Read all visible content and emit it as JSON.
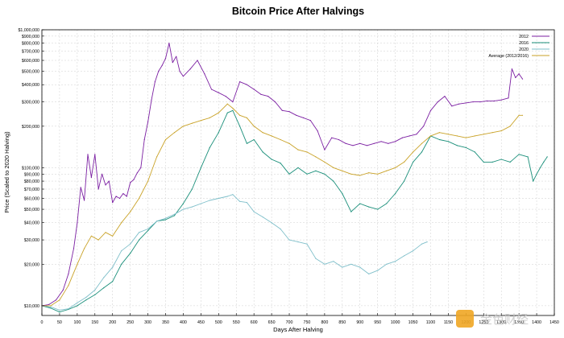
{
  "chart_data": {
    "type": "line",
    "title": "Bitcoin Price After Halvings",
    "xlabel": "Days After Halving",
    "ylabel": "Price (Scaled to 2020 Halving)",
    "y_scale": "log",
    "xlim": [
      0,
      1450
    ],
    "ylim": [
      8500,
      1000000
    ],
    "grid": true,
    "legend_position": "top-right",
    "x_ticks": [
      0,
      50,
      100,
      150,
      200,
      250,
      300,
      350,
      400,
      450,
      500,
      550,
      600,
      650,
      700,
      750,
      800,
      850,
      900,
      950,
      1000,
      1050,
      1100,
      1150,
      1200,
      1250,
      1300,
      1350,
      1400,
      1450
    ],
    "x_tick_labels": [
      "0",
      "50",
      "100",
      "150",
      "200",
      "250",
      "300",
      "350",
      "400",
      "450",
      "500",
      "550",
      "600",
      "650",
      "700",
      "750",
      "800",
      "850",
      "900",
      "950",
      "1000",
      "1050",
      "1100",
      "1150",
      "1200",
      "1250",
      "1300",
      "1350",
      "1400",
      "1450"
    ],
    "y_ticks": [
      10000,
      20000,
      30000,
      40000,
      50000,
      60000,
      70000,
      80000,
      90000,
      100000,
      200000,
      300000,
      400000,
      500000,
      600000,
      700000,
      800000,
      900000,
      1000000
    ],
    "y_tick_labels": [
      "$10,000",
      "$20,000",
      "$30,000",
      "$40,000",
      "$50,000",
      "$60,000",
      "$70,000",
      "$80,000",
      "$90,000",
      "$100,000",
      "$200,000",
      "$300,000",
      "$400,000",
      "$500,000",
      "$600,000",
      "$700,000",
      "$800,000",
      "$900,000",
      "$1,000,000"
    ],
    "series": [
      {
        "name": "2012",
        "color": "#7b1fa2",
        "x": [
          0,
          20,
          40,
          60,
          75,
          90,
          100,
          110,
          120,
          130,
          140,
          150,
          160,
          170,
          180,
          190,
          200,
          210,
          220,
          230,
          240,
          250,
          260,
          270,
          280,
          290,
          300,
          310,
          320,
          330,
          340,
          350,
          360,
          370,
          380,
          390,
          400,
          420,
          440,
          460,
          480,
          500,
          520,
          540,
          560,
          580,
          600,
          620,
          640,
          660,
          680,
          700,
          720,
          740,
          760,
          780,
          800,
          820,
          840,
          860,
          880,
          900,
          920,
          940,
          960,
          980,
          1000,
          1020,
          1040,
          1060,
          1080,
          1100,
          1120,
          1140,
          1160,
          1180,
          1200,
          1220,
          1240,
          1260,
          1280,
          1300,
          1320,
          1330,
          1340,
          1350,
          1360
        ],
        "y": [
          10000,
          10200,
          11000,
          13000,
          17000,
          26000,
          40000,
          72000,
          58000,
          125000,
          85000,
          125000,
          70000,
          90000,
          75000,
          80000,
          56000,
          62000,
          60000,
          65000,
          62000,
          78000,
          82000,
          92000,
          100000,
          160000,
          215000,
          310000,
          420000,
          500000,
          550000,
          620000,
          800000,
          580000,
          640000,
          500000,
          460000,
          520000,
          600000,
          480000,
          370000,
          350000,
          330000,
          300000,
          420000,
          400000,
          370000,
          340000,
          330000,
          300000,
          260000,
          255000,
          240000,
          230000,
          220000,
          185000,
          135000,
          165000,
          160000,
          150000,
          145000,
          150000,
          145000,
          150000,
          155000,
          150000,
          155000,
          165000,
          170000,
          175000,
          200000,
          260000,
          300000,
          330000,
          280000,
          290000,
          295000,
          300000,
          300000,
          305000,
          305000,
          310000,
          320000,
          520000,
          450000,
          480000,
          440000
        ]
      },
      {
        "name": "2016",
        "color": "#1a8f7a",
        "x": [
          0,
          25,
          50,
          75,
          100,
          125,
          150,
          175,
          200,
          225,
          250,
          275,
          300,
          325,
          350,
          375,
          400,
          425,
          450,
          475,
          500,
          525,
          540,
          560,
          580,
          600,
          625,
          650,
          675,
          700,
          725,
          750,
          775,
          800,
          825,
          850,
          875,
          900,
          925,
          950,
          975,
          1000,
          1025,
          1050,
          1075,
          1100,
          1125,
          1150,
          1175,
          1200,
          1225,
          1250,
          1275,
          1300,
          1325,
          1350,
          1375,
          1390,
          1400,
          1410,
          1420,
          1430
        ],
        "y": [
          10000,
          9600,
          9000,
          9400,
          10000,
          11000,
          12000,
          13500,
          15000,
          20000,
          24000,
          30000,
          35000,
          41000,
          42000,
          45000,
          55000,
          70000,
          100000,
          140000,
          180000,
          250000,
          260000,
          200000,
          150000,
          160000,
          130000,
          115000,
          108000,
          90000,
          100000,
          90000,
          95000,
          90000,
          80000,
          65000,
          48000,
          55000,
          52000,
          50000,
          55000,
          65000,
          80000,
          110000,
          130000,
          170000,
          160000,
          155000,
          145000,
          140000,
          130000,
          110000,
          110000,
          115000,
          110000,
          125000,
          120000,
          80000,
          90000,
          100000,
          110000,
          120000
        ]
      },
      {
        "name": "2020",
        "color": "#7fbfca",
        "x": [
          0,
          25,
          50,
          75,
          100,
          125,
          150,
          175,
          200,
          225,
          250,
          275,
          300,
          325,
          350,
          375,
          400,
          425,
          450,
          475,
          500,
          525,
          540,
          560,
          580,
          600,
          625,
          650,
          675,
          700,
          725,
          750,
          775,
          800,
          825,
          850,
          875,
          900,
          925,
          950,
          975,
          1000,
          1025,
          1050,
          1075,
          1090
        ],
        "y": [
          10000,
          9800,
          9300,
          9500,
          10500,
          11500,
          13000,
          16000,
          19000,
          25000,
          28000,
          34000,
          36000,
          41000,
          43000,
          46000,
          50000,
          52000,
          55000,
          58000,
          60000,
          62000,
          64000,
          57000,
          56000,
          48000,
          44000,
          40000,
          36000,
          30000,
          29000,
          28000,
          22000,
          20000,
          21000,
          19000,
          20000,
          19000,
          17000,
          18000,
          20000,
          21000,
          23000,
          25000,
          28000,
          29000
        ]
      },
      {
        "name": "Average (2012/2016)",
        "color": "#c9a227",
        "x": [
          0,
          25,
          50,
          75,
          100,
          120,
          140,
          160,
          180,
          200,
          225,
          250,
          275,
          300,
          325,
          350,
          375,
          400,
          425,
          450,
          475,
          500,
          525,
          540,
          560,
          580,
          600,
          625,
          650,
          675,
          700,
          725,
          750,
          775,
          800,
          825,
          850,
          875,
          900,
          925,
          950,
          975,
          1000,
          1025,
          1050,
          1075,
          1100,
          1125,
          1150,
          1175,
          1200,
          1225,
          1250,
          1275,
          1300,
          1325,
          1350,
          1360
        ],
        "y": [
          10000,
          10000,
          11000,
          14000,
          20000,
          26000,
          32000,
          30000,
          34000,
          32000,
          40000,
          48000,
          60000,
          80000,
          120000,
          160000,
          180000,
          200000,
          210000,
          220000,
          230000,
          250000,
          290000,
          270000,
          240000,
          230000,
          200000,
          180000,
          170000,
          160000,
          150000,
          135000,
          130000,
          120000,
          110000,
          100000,
          95000,
          90000,
          88000,
          92000,
          90000,
          95000,
          100000,
          110000,
          130000,
          150000,
          170000,
          180000,
          175000,
          170000,
          165000,
          170000,
          175000,
          180000,
          185000,
          200000,
          240000,
          240000
        ]
      }
    ]
  },
  "watermark": {
    "text": "金色财经"
  }
}
